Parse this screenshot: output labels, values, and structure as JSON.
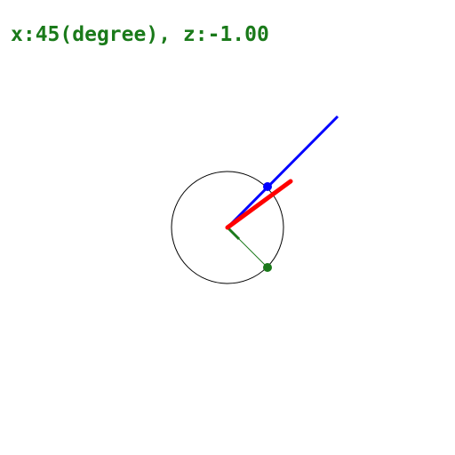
{
  "readout": {
    "x_label": "x:",
    "x_value": "45",
    "x_unit": "(degree)",
    "separator": ", ",
    "z_label": "z:",
    "z_value": "-1.00"
  },
  "state": {
    "angle_degrees": 45,
    "z": -1.0
  },
  "colors": {
    "text": "#1a7a1a",
    "circle": "#000000",
    "blue_vector": "#0000ff",
    "red_vector": "#ff0000",
    "green_vector": "#1a7a1a",
    "background": "#ffffff"
  }
}
